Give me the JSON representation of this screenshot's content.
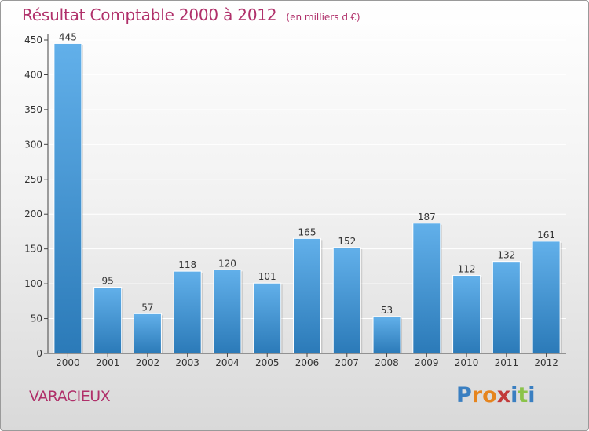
{
  "header": {
    "title": "Résultat Comptable 2000 à 2012",
    "unit": "(en milliers d'€)"
  },
  "footer": {
    "place": "VARACIEUX",
    "logo_text": "Proxiti",
    "logo_colors": [
      "#3a7fc1",
      "#e6851e",
      "#e6851e",
      "#c23a3a",
      "#3a7fc1",
      "#8bc34a",
      "#3a7fc1"
    ]
  },
  "colors": {
    "bar_top": "#62b0ea",
    "bar_bottom": "#2b7ab8",
    "grid": "#ffffff",
    "axis_text": "#333333"
  },
  "chart_data": {
    "type": "bar",
    "categories": [
      "2000",
      "2001",
      "2002",
      "2003",
      "2004",
      "2005",
      "2006",
      "2007",
      "2008",
      "2009",
      "2010",
      "2011",
      "2012"
    ],
    "values": [
      445,
      95,
      57,
      118,
      120,
      101,
      165,
      152,
      53,
      187,
      112,
      132,
      161
    ],
    "yticks": [
      0,
      50,
      100,
      150,
      200,
      250,
      300,
      350,
      400,
      450
    ],
    "ylim": [
      0,
      450
    ],
    "grid": true
  }
}
